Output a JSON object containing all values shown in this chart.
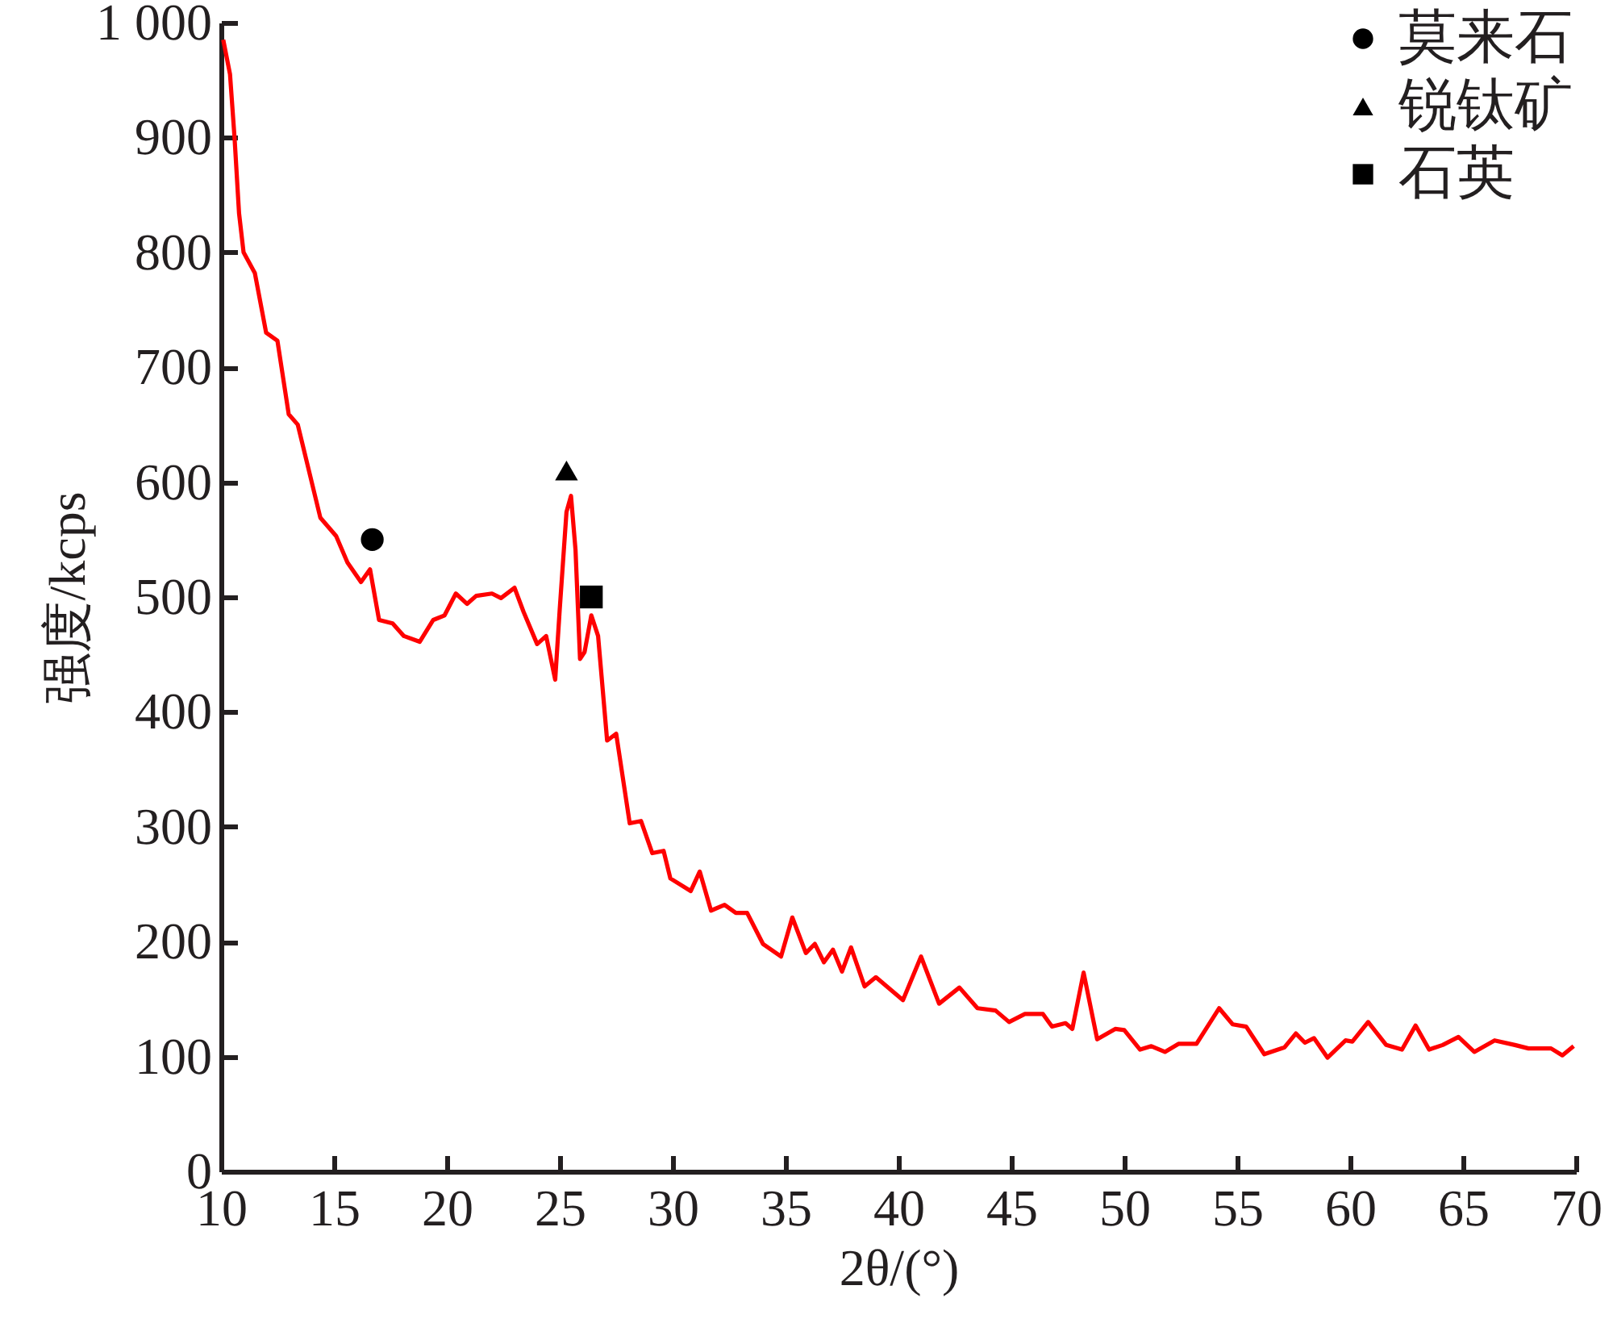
{
  "chart_data": {
    "type": "line",
    "xlabel": "2θ/(°)",
    "ylabel": "强度/kcps",
    "xlim": [
      10,
      70
    ],
    "xticks": [
      10,
      15,
      20,
      25,
      30,
      35,
      40,
      45,
      50,
      55,
      60,
      65,
      70
    ],
    "ylim": [
      0,
      1000
    ],
    "yticks": [
      0,
      100,
      200,
      300,
      400,
      500,
      600,
      700,
      800,
      900,
      {
        "value": 1000,
        "label": "1 000"
      }
    ],
    "grid": false,
    "legend": "top right",
    "series": [
      {
        "color": "#ff0000",
        "x": [
          10.1,
          10.4,
          10.6,
          10.8,
          11.0,
          11.5,
          12.0,
          12.5,
          13.0,
          13.4,
          14.4,
          15.1,
          15.6,
          16.2,
          16.6,
          17.0,
          17.6,
          18.1,
          18.8,
          19.4,
          19.9,
          20.4,
          20.9,
          21.3,
          22.0,
          22.4,
          23.0,
          23.4,
          24.0,
          24.4,
          24.8,
          25.0,
          25.3,
          25.5,
          25.7,
          25.9,
          26.1,
          26.4,
          26.7,
          27.1,
          27.5,
          28.1,
          28.6,
          29.1,
          29.6,
          29.9,
          30.8,
          31.2,
          31.7,
          32.3,
          32.8,
          33.3,
          34.0,
          34.8,
          35.3,
          35.9,
          36.3,
          36.7,
          37.1,
          37.5,
          37.9,
          38.5,
          39.0,
          40.2,
          41.0,
          41.8,
          42.7,
          43.5,
          44.3,
          44.9,
          45.6,
          46.4,
          46.8,
          47.4,
          47.7,
          48.2,
          48.8,
          49.6,
          50.0,
          50.7,
          51.2,
          51.8,
          52.4,
          53.2,
          54.2,
          54.8,
          55.4,
          56.2,
          57.1,
          57.6,
          58.0,
          58.4,
          59.0,
          59.8,
          60.1,
          60.8,
          61.6,
          62.3,
          62.9,
          63.5,
          64.1,
          64.8,
          65.5,
          66.4,
          67.3,
          67.9,
          68.9,
          69.4,
          69.9
        ],
        "values": [
          985,
          955,
          900,
          834,
          800,
          782,
          730,
          723,
          659,
          650,
          569,
          553,
          530,
          513,
          524,
          480,
          477,
          466,
          461,
          480,
          484,
          503,
          494,
          501,
          503,
          499,
          508,
          487,
          459,
          466,
          428,
          489,
          574,
          588,
          541,
          446,
          452,
          484,
          466,
          375,
          381,
          303,
          305,
          277,
          279,
          255,
          244,
          261,
          227,
          232,
          225,
          225,
          198,
          187,
          221,
          190,
          198,
          182,
          193,
          174,
          195,
          161,
          169,
          149,
          187,
          146,
          160,
          142,
          140,
          130,
          137,
          137,
          126,
          129,
          124,
          173,
          115,
          124,
          123,
          106,
          109,
          104,
          111,
          111,
          142,
          128,
          126,
          102,
          108,
          120,
          112,
          116,
          99,
          114,
          113,
          130,
          110,
          106,
          127,
          106,
          110,
          117,
          104,
          114,
          110,
          107,
          107,
          101,
          109
        ]
      },
      {
        "type": "scatter",
        "name": "莫来石",
        "color": "#000000",
        "marker": "circle",
        "x": [
          16.7
        ],
        "values": [
          550
        ]
      },
      {
        "type": "scatter",
        "name": "锐钛矿",
        "color": "#000000",
        "marker": "triangle",
        "x": [
          25.3
        ],
        "values": [
          610
        ]
      },
      {
        "type": "scatter",
        "name": "石英",
        "color": "#000000",
        "marker": "square",
        "x": [
          26.4
        ],
        "values": [
          500
        ]
      }
    ]
  }
}
